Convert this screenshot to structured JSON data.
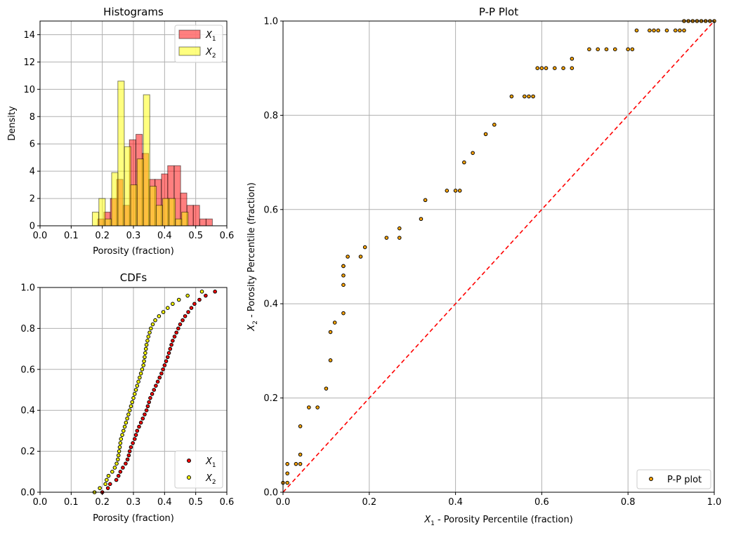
{
  "chart_data": [
    {
      "type": "histogram",
      "title": "Histograms",
      "xlabel": "Porosity (fraction)",
      "ylabel": "Density",
      "xlim": [
        0.0,
        0.6
      ],
      "ylim": [
        0,
        15
      ],
      "xticks": [
        "0.0",
        "0.1",
        "0.2",
        "0.3",
        "0.4",
        "0.5",
        "0.6"
      ],
      "yticks": [
        "0",
        "2",
        "4",
        "6",
        "8",
        "10",
        "12",
        "14"
      ],
      "grid": true,
      "legend": "top-right",
      "bin_width": 0.0205,
      "series": [
        {
          "name": "X1",
          "label_base": "X",
          "label_sub": "1",
          "color": "#ff0000",
          "bins": [
            {
              "x0": 0.185,
              "value": 0.5
            },
            {
              "x0": 0.205,
              "value": 1.0
            },
            {
              "x0": 0.226,
              "value": 2.0
            },
            {
              "x0": 0.246,
              "value": 3.4
            },
            {
              "x0": 0.267,
              "value": 1.5
            },
            {
              "x0": 0.287,
              "value": 6.3
            },
            {
              "x0": 0.308,
              "value": 6.7
            },
            {
              "x0": 0.328,
              "value": 5.3
            },
            {
              "x0": 0.349,
              "value": 3.4
            },
            {
              "x0": 0.369,
              "value": 3.4
            },
            {
              "x0": 0.39,
              "value": 3.8
            },
            {
              "x0": 0.41,
              "value": 4.4
            },
            {
              "x0": 0.431,
              "value": 4.4
            },
            {
              "x0": 0.451,
              "value": 2.4
            },
            {
              "x0": 0.472,
              "value": 1.5
            },
            {
              "x0": 0.492,
              "value": 1.5
            },
            {
              "x0": 0.513,
              "value": 0.5
            },
            {
              "x0": 0.533,
              "value": 0.5
            }
          ]
        },
        {
          "name": "X2",
          "label_base": "X",
          "label_sub": "2",
          "color": "#ffff00",
          "bins": [
            {
              "x0": 0.168,
              "value": 1.0
            },
            {
              "x0": 0.189,
              "value": 2.0
            },
            {
              "x0": 0.209,
              "value": 0.5
            },
            {
              "x0": 0.23,
              "value": 3.9
            },
            {
              "x0": 0.25,
              "value": 10.6
            },
            {
              "x0": 0.271,
              "value": 5.8
            },
            {
              "x0": 0.291,
              "value": 3.0
            },
            {
              "x0": 0.312,
              "value": 4.9
            },
            {
              "x0": 0.332,
              "value": 9.6
            },
            {
              "x0": 0.353,
              "value": 2.9
            },
            {
              "x0": 0.373,
              "value": 1.5
            },
            {
              "x0": 0.394,
              "value": 2.0
            },
            {
              "x0": 0.414,
              "value": 2.0
            },
            {
              "x0": 0.435,
              "value": 0.5
            },
            {
              "x0": 0.455,
              "value": 1.0
            }
          ]
        }
      ]
    },
    {
      "type": "scatter",
      "title": "CDFs",
      "xlabel": "Porosity (fraction)",
      "xlim": [
        0.0,
        0.6
      ],
      "ylim": [
        0.0,
        1.0
      ],
      "xticks": [
        "0.0",
        "0.1",
        "0.2",
        "0.3",
        "0.4",
        "0.5",
        "0.6"
      ],
      "yticks": [
        "0.0",
        "0.2",
        "0.4",
        "0.6",
        "0.8",
        "1.0"
      ],
      "grid": true,
      "legend": "bottom-right",
      "series": [
        {
          "name": "X1",
          "label_base": "X",
          "label_sub": "1",
          "color": "#ff0000",
          "x": [
            0.2,
            0.218,
            0.225,
            0.245,
            0.252,
            0.258,
            0.266,
            0.275,
            0.281,
            0.285,
            0.288,
            0.292,
            0.298,
            0.304,
            0.308,
            0.312,
            0.318,
            0.324,
            0.33,
            0.336,
            0.342,
            0.346,
            0.35,
            0.354,
            0.36,
            0.366,
            0.372,
            0.378,
            0.384,
            0.39,
            0.395,
            0.4,
            0.405,
            0.41,
            0.414,
            0.418,
            0.422,
            0.426,
            0.432,
            0.438,
            0.444,
            0.45,
            0.458,
            0.466,
            0.476,
            0.486,
            0.496,
            0.512,
            0.532,
            0.562
          ],
          "y": [
            0.0,
            0.02,
            0.04,
            0.06,
            0.08,
            0.1,
            0.12,
            0.14,
            0.16,
            0.18,
            0.2,
            0.22,
            0.24,
            0.26,
            0.28,
            0.3,
            0.32,
            0.34,
            0.36,
            0.38,
            0.4,
            0.42,
            0.44,
            0.46,
            0.48,
            0.5,
            0.52,
            0.54,
            0.56,
            0.58,
            0.6,
            0.62,
            0.64,
            0.66,
            0.68,
            0.7,
            0.72,
            0.74,
            0.76,
            0.78,
            0.8,
            0.82,
            0.84,
            0.86,
            0.88,
            0.9,
            0.92,
            0.94,
            0.96,
            0.98
          ]
        },
        {
          "name": "X2",
          "label_base": "X",
          "label_sub": "2",
          "color": "#ffff00",
          "x": [
            0.175,
            0.192,
            0.21,
            0.214,
            0.22,
            0.232,
            0.24,
            0.246,
            0.25,
            0.252,
            0.254,
            0.256,
            0.258,
            0.26,
            0.264,
            0.268,
            0.272,
            0.276,
            0.28,
            0.284,
            0.288,
            0.292,
            0.296,
            0.3,
            0.304,
            0.308,
            0.312,
            0.316,
            0.32,
            0.324,
            0.328,
            0.332,
            0.334,
            0.336,
            0.338,
            0.34,
            0.342,
            0.345,
            0.348,
            0.352,
            0.356,
            0.362,
            0.37,
            0.382,
            0.396,
            0.41,
            0.426,
            0.446,
            0.474,
            0.52
          ],
          "y": [
            0.0,
            0.02,
            0.04,
            0.06,
            0.08,
            0.1,
            0.12,
            0.14,
            0.16,
            0.18,
            0.2,
            0.22,
            0.24,
            0.26,
            0.28,
            0.3,
            0.32,
            0.34,
            0.36,
            0.38,
            0.4,
            0.42,
            0.44,
            0.46,
            0.48,
            0.5,
            0.52,
            0.54,
            0.56,
            0.58,
            0.6,
            0.62,
            0.64,
            0.66,
            0.68,
            0.7,
            0.72,
            0.74,
            0.76,
            0.78,
            0.8,
            0.82,
            0.84,
            0.86,
            0.88,
            0.9,
            0.92,
            0.94,
            0.96,
            0.98
          ]
        }
      ]
    },
    {
      "type": "scatter",
      "title": "P-P Plot",
      "xlabel_base": "X",
      "xlabel_sub": "1",
      "xlabel_rest": " - Porosity Percentile (fraction)",
      "ylabel_base": "X",
      "ylabel_sub": "2",
      "ylabel_rest": " - Porosity Percentile (fraction)",
      "xlim": [
        0.0,
        1.0
      ],
      "ylim": [
        0.0,
        1.0
      ],
      "xticks": [
        "0.0",
        "0.2",
        "0.4",
        "0.6",
        "0.8",
        "1.0"
      ],
      "yticks": [
        "0.0",
        "0.2",
        "0.4",
        "0.6",
        "0.8",
        "1.0"
      ],
      "grid": true,
      "legend": "bottom-right",
      "reference_line": {
        "from": [
          0,
          0
        ],
        "to": [
          1,
          1
        ],
        "color": "#ff0000",
        "style": "dashed"
      },
      "series": [
        {
          "name": "P-P plot",
          "color": "#ffa500",
          "x": [
            0.0,
            0.01,
            0.01,
            0.01,
            0.03,
            0.04,
            0.04,
            0.04,
            0.06,
            0.08,
            0.1,
            0.11,
            0.11,
            0.12,
            0.14,
            0.14,
            0.14,
            0.14,
            0.14,
            0.15,
            0.18,
            0.19,
            0.24,
            0.27,
            0.27,
            0.32,
            0.33,
            0.38,
            0.4,
            0.41,
            0.42,
            0.44,
            0.47,
            0.49,
            0.53,
            0.56,
            0.57,
            0.58,
            0.59,
            0.6,
            0.61,
            0.63,
            0.65,
            0.67,
            0.67,
            0.71,
            0.73,
            0.75,
            0.77,
            0.8,
            0.81,
            0.82,
            0.85,
            0.86,
            0.87,
            0.89,
            0.91,
            0.92,
            0.93,
            0.93,
            0.94,
            0.95,
            0.96,
            0.97,
            0.98,
            0.99,
            1.0
          ],
          "y": [
            0.02,
            0.02,
            0.04,
            0.06,
            0.06,
            0.06,
            0.08,
            0.14,
            0.18,
            0.18,
            0.22,
            0.28,
            0.34,
            0.36,
            0.38,
            0.44,
            0.46,
            0.48,
            0.48,
            0.5,
            0.5,
            0.52,
            0.54,
            0.54,
            0.56,
            0.58,
            0.62,
            0.64,
            0.64,
            0.64,
            0.7,
            0.72,
            0.76,
            0.78,
            0.84,
            0.84,
            0.84,
            0.84,
            0.9,
            0.9,
            0.9,
            0.9,
            0.9,
            0.9,
            0.92,
            0.94,
            0.94,
            0.94,
            0.94,
            0.94,
            0.94,
            0.98,
            0.98,
            0.98,
            0.98,
            0.98,
            0.98,
            0.98,
            0.98,
            1.0,
            1.0,
            1.0,
            1.0,
            1.0,
            1.0,
            1.0,
            1.0
          ]
        }
      ]
    }
  ]
}
